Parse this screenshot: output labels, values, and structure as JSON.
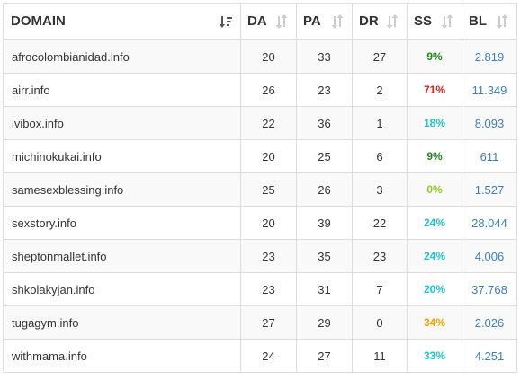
{
  "columns": {
    "domain": "DOMAIN",
    "da": "DA",
    "pa": "PA",
    "dr": "DR",
    "ss": "SS",
    "bl": "BL"
  },
  "sort_icons": {
    "domain": "sort-active-icon",
    "others": "sort-both-icon"
  },
  "colors": {
    "ss_green": "#1a8a1a",
    "ss_red": "#d22020",
    "ss_cyan": "#21c2c8",
    "ss_lime": "#8fce1e",
    "ss_orange": "#f0a000",
    "bl_link": "#3d7fb8"
  },
  "rows": [
    {
      "domain": "afrocolombianidad.info",
      "da": "20",
      "pa": "33",
      "dr": "27",
      "ss": "9%",
      "ss_color": "green",
      "bl": "2.819"
    },
    {
      "domain": "airr.info",
      "da": "26",
      "pa": "23",
      "dr": "2",
      "ss": "71%",
      "ss_color": "red",
      "bl": "11.349"
    },
    {
      "domain": "ivibox.info",
      "da": "22",
      "pa": "36",
      "dr": "1",
      "ss": "18%",
      "ss_color": "cyan",
      "bl": "8.093"
    },
    {
      "domain": "michinokukai.info",
      "da": "20",
      "pa": "25",
      "dr": "6",
      "ss": "9%",
      "ss_color": "green",
      "bl": "611"
    },
    {
      "domain": "samesexblessing.info",
      "da": "25",
      "pa": "26",
      "dr": "3",
      "ss": "0%",
      "ss_color": "lime",
      "bl": "1.527"
    },
    {
      "domain": "sexstory.info",
      "da": "20",
      "pa": "39",
      "dr": "22",
      "ss": "24%",
      "ss_color": "cyan",
      "bl": "28.044"
    },
    {
      "domain": "sheptonmallet.info",
      "da": "23",
      "pa": "35",
      "dr": "23",
      "ss": "24%",
      "ss_color": "cyan",
      "bl": "4.006"
    },
    {
      "domain": "shkolakyjan.info",
      "da": "23",
      "pa": "31",
      "dr": "7",
      "ss": "20%",
      "ss_color": "cyan",
      "bl": "37.768"
    },
    {
      "domain": "tugagym.info",
      "da": "27",
      "pa": "29",
      "dr": "0",
      "ss": "34%",
      "ss_color": "orange",
      "bl": "2.026"
    },
    {
      "domain": "withmama.info",
      "da": "24",
      "pa": "27",
      "dr": "11",
      "ss": "33%",
      "ss_color": "cyan",
      "bl": "4.251"
    }
  ]
}
